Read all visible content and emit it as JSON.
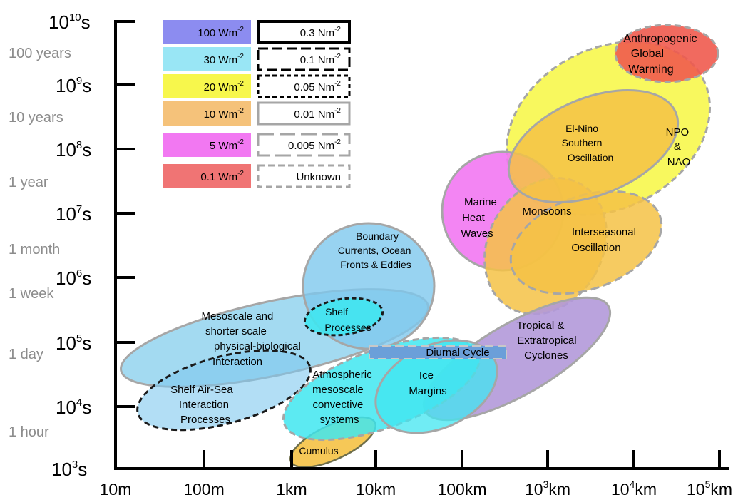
{
  "y_axis": {
    "ticks": [
      {
        "base": "10",
        "exp": "3",
        "unit": "s"
      },
      {
        "base": "10",
        "exp": "4",
        "unit": "s"
      },
      {
        "base": "10",
        "exp": "5",
        "unit": "s"
      },
      {
        "base": "10",
        "exp": "6",
        "unit": "s"
      },
      {
        "base": "10",
        "exp": "7",
        "unit": "s"
      },
      {
        "base": "10",
        "exp": "8",
        "unit": "s"
      },
      {
        "base": "10",
        "exp": "9",
        "unit": "s"
      },
      {
        "base": "10",
        "exp": "10",
        "unit": "s"
      }
    ],
    "time_labels": [
      "1 hour",
      "1 day",
      "1 week",
      "1 month",
      "1 year",
      "10 years",
      "100 years"
    ]
  },
  "x_axis": {
    "ticks": [
      {
        "base": "10m",
        "exp": ""
      },
      {
        "base": "100m",
        "exp": ""
      },
      {
        "base": "1km",
        "exp": ""
      },
      {
        "base": "10km",
        "exp": ""
      },
      {
        "base": "100km",
        "exp": ""
      },
      {
        "base": "10",
        "exp": "3",
        "unit": "km"
      },
      {
        "base": "10",
        "exp": "4",
        "unit": "km"
      },
      {
        "base": "10",
        "exp": "5",
        "unit": "km"
      }
    ]
  },
  "legend": {
    "heat_flux": [
      {
        "value": "100 Wm",
        "exp": "-2",
        "color": "#8c8cf0"
      },
      {
        "value": "30 Wm",
        "exp": "-2",
        "color": "#99e6f5"
      },
      {
        "value": "20 Wm",
        "exp": "-2",
        "color": "#f7f74c"
      },
      {
        "value": "10 Wm",
        "exp": "-2",
        "color": "#f5c27a"
      },
      {
        "value": "5 Wm",
        "exp": "-2",
        "color": "#f278f2"
      },
      {
        "value": "0.1 Wm",
        "exp": "-2",
        "color": "#f07474"
      }
    ],
    "momentum_flux": [
      {
        "value": "0.3 Nm",
        "exp": "-2",
        "line": "solid-black-thick"
      },
      {
        "value": "0.1 Nm",
        "exp": "-2",
        "line": "dash-black"
      },
      {
        "value": "0.05 Nm",
        "exp": "-2",
        "line": "dot-black"
      },
      {
        "value": "0.01 Nm",
        "exp": "-2",
        "line": "solid-gray"
      },
      {
        "value": "0.005 Nm",
        "exp": "-2",
        "line": "dash-gray-long"
      },
      {
        "value": "Unknown",
        "exp": "",
        "line": "dash-gray"
      }
    ]
  },
  "phenomena": {
    "anthropogenic": [
      "Anthropogenic",
      "Global",
      "Warming"
    ],
    "npo": [
      "NPO",
      "&",
      "NAO"
    ],
    "enso": [
      "El-Nino",
      "Southern",
      "Oscillation"
    ],
    "heatwaves": [
      "Marine",
      "Heat",
      "Waves"
    ],
    "monsoons": [
      "Monsoons"
    ],
    "interseasonal": [
      "Interseasonal",
      "Oscillation"
    ],
    "boundary": [
      "Boundary",
      "Currents, Ocean",
      "Fronts & Eddies"
    ],
    "shelf": [
      "Shelf",
      "Processes"
    ],
    "mesoscale": [
      "Mesoscale and",
      "shorter scale",
      "physical-biological",
      "Interaction"
    ],
    "tropical": [
      "Tropical &",
      "Extratropical",
      "Cyclones"
    ],
    "diurnal": [
      "Diurnal Cycle"
    ],
    "ice": [
      "Ice",
      "Margins"
    ],
    "atmos": [
      "Atmospheric",
      "mesoscale",
      "convective",
      "systems"
    ],
    "shelfair": [
      "Shelf Air-Sea",
      "Interaction",
      "Processes"
    ],
    "cumulus": [
      "Cumulus"
    ]
  }
}
